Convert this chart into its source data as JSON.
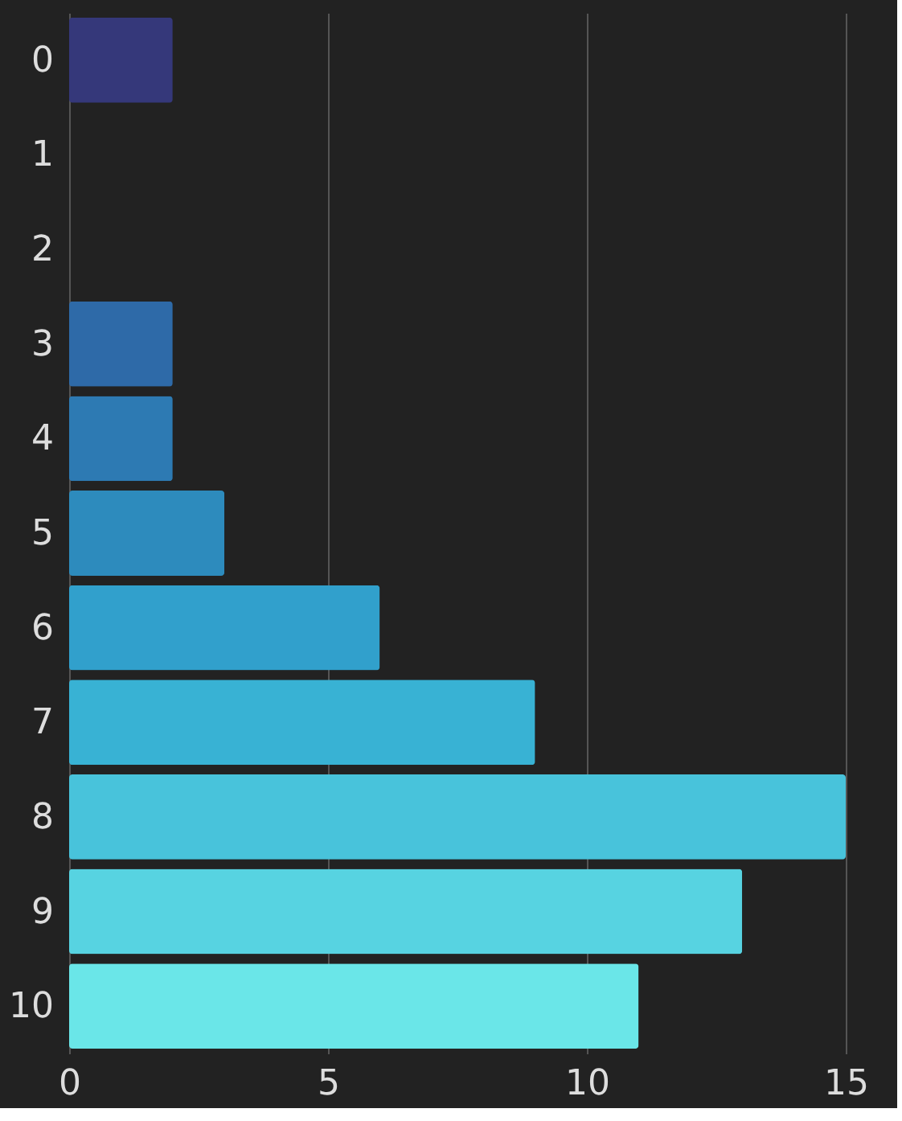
{
  "chart_data": {
    "type": "bar",
    "orientation": "horizontal",
    "categories": [
      "0",
      "1",
      "2",
      "3",
      "4",
      "5",
      "6",
      "7",
      "8",
      "9",
      "10"
    ],
    "values": [
      2,
      0,
      0,
      2,
      2,
      3,
      6,
      9,
      15,
      13,
      11
    ],
    "colors": [
      "#35387a",
      "#30509a",
      "#2f5ea3",
      "#2e6aa8",
      "#2d7ab3",
      "#2d8bbd",
      "#31a0cc",
      "#38b2d4",
      "#48c3db",
      "#57d3e1",
      "#6ae6e8"
    ],
    "xlim": [
      0,
      15
    ],
    "xticks": [
      0,
      5,
      10,
      15
    ],
    "grid": "x",
    "legend": false
  }
}
